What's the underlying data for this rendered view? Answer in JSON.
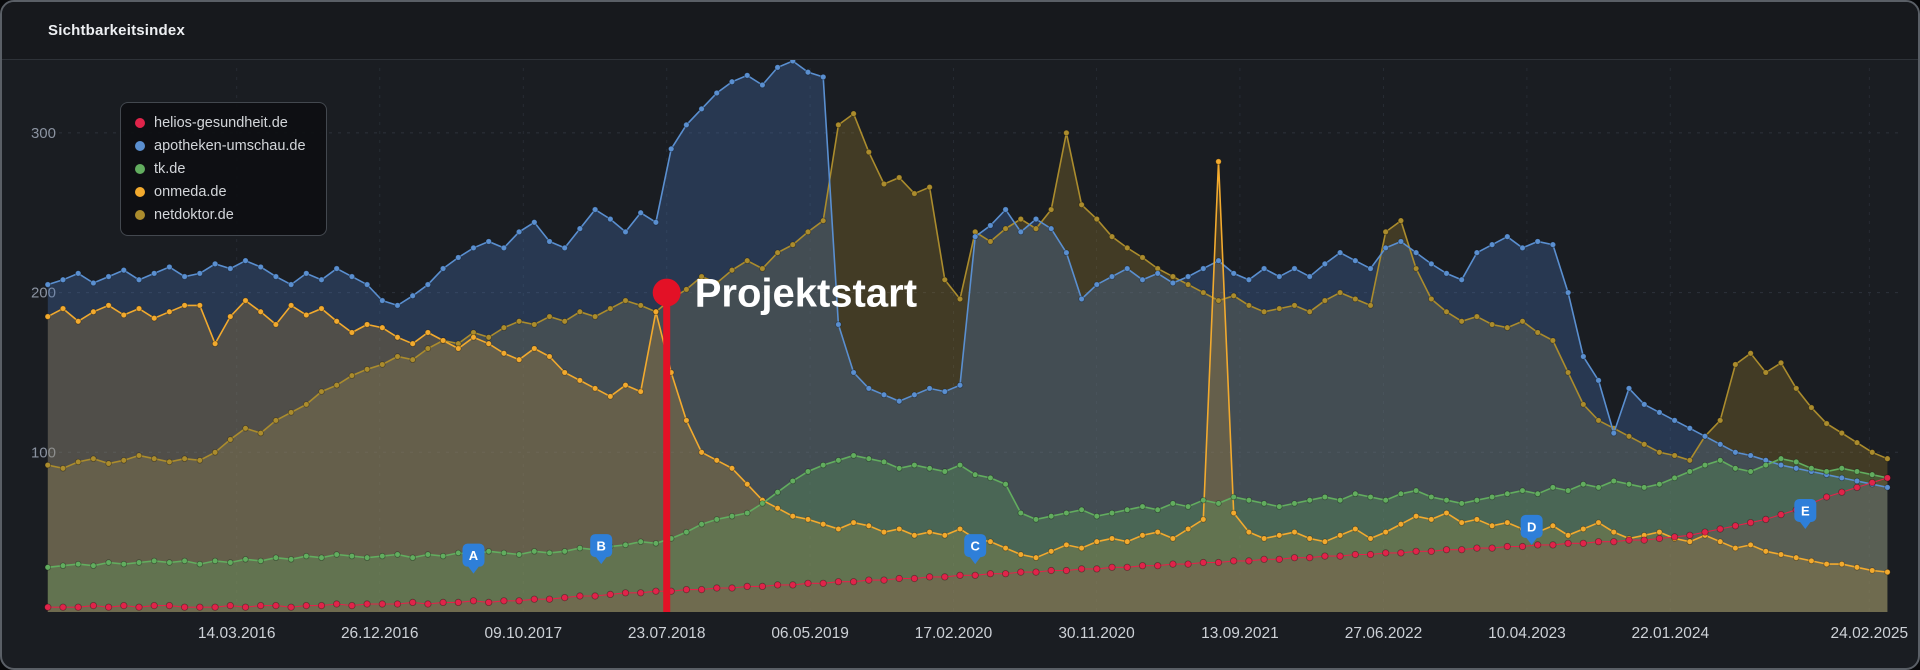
{
  "header": {
    "title": "Sichtbarkeitsindex"
  },
  "chart_data": {
    "type": "line",
    "title": "Sichtbarkeitsindex",
    "legend_position": "top-left",
    "grid": true,
    "x_axis": {
      "range": [
        2015.08,
        2025.33
      ],
      "tick_labels": [
        "14.03.2016",
        "26.12.2016",
        "09.10.2017",
        "23.07.2018",
        "06.05.2019",
        "17.02.2020",
        "30.11.2020",
        "13.09.2021",
        "27.06.2022",
        "10.04.2023",
        "22.01.2024",
        "24.02.2025"
      ],
      "tick_positions": [
        2016.202,
        2016.986,
        2017.773,
        2018.559,
        2019.345,
        2020.131,
        2020.915,
        2021.701,
        2022.488,
        2023.274,
        2024.06,
        2025.151
      ]
    },
    "y_axis": {
      "ticks": [
        "100",
        "200",
        "300"
      ],
      "tick_values": [
        100,
        200,
        300
      ],
      "min": 0,
      "max": 345
    },
    "x_start": 2015.1667,
    "x_step_years": 0.0833333,
    "series": [
      {
        "name": "helios-gesundheit.de",
        "color": "#e0244a",
        "fill": "rgba(224,36,74,0.10)",
        "marker_radius": 3.2,
        "line_width": 1.1,
        "values": [
          3,
          3,
          3,
          4,
          3,
          4,
          3,
          4,
          4,
          3,
          3,
          3,
          4,
          3,
          4,
          4,
          3,
          4,
          4,
          5,
          4,
          5,
          5,
          5,
          6,
          5,
          6,
          6,
          7,
          6,
          7,
          7,
          8,
          8,
          9,
          10,
          10,
          11,
          12,
          12,
          13,
          13,
          14,
          14,
          15,
          15,
          16,
          16,
          17,
          17,
          18,
          18,
          19,
          19,
          20,
          20,
          21,
          21,
          22,
          22,
          23,
          23,
          24,
          24,
          25,
          25,
          26,
          26,
          27,
          27,
          28,
          28,
          29,
          29,
          30,
          30,
          31,
          31,
          32,
          32,
          33,
          33,
          34,
          34,
          35,
          35,
          36,
          36,
          37,
          37,
          38,
          38,
          39,
          39,
          40,
          40,
          41,
          41,
          42,
          42,
          43,
          43,
          44,
          44,
          45,
          45,
          46,
          47,
          48,
          50,
          52,
          54,
          56,
          58,
          61,
          64,
          68,
          72,
          75,
          78,
          81,
          84
        ]
      },
      {
        "name": "apotheken-umschau.de",
        "color": "#5a8fd0",
        "fill": "rgba(70,115,180,0.32)",
        "marker_radius": 2.8,
        "line_width": 1.6,
        "values": [
          205,
          208,
          212,
          206,
          210,
          214,
          208,
          212,
          216,
          210,
          212,
          218,
          215,
          220,
          216,
          210,
          205,
          212,
          208,
          215,
          210,
          205,
          195,
          192,
          198,
          205,
          215,
          222,
          228,
          232,
          228,
          238,
          244,
          232,
          228,
          240,
          252,
          246,
          238,
          250,
          244,
          290,
          305,
          315,
          325,
          332,
          336,
          330,
          341,
          345,
          338,
          335,
          180,
          150,
          140,
          136,
          132,
          136,
          140,
          138,
          142,
          235,
          242,
          252,
          238,
          246,
          240,
          225,
          196,
          205,
          210,
          215,
          208,
          212,
          206,
          210,
          215,
          220,
          212,
          208,
          215,
          210,
          215,
          210,
          218,
          225,
          220,
          215,
          228,
          232,
          225,
          218,
          212,
          208,
          225,
          230,
          235,
          228,
          232,
          230,
          200,
          160,
          145,
          112,
          140,
          130,
          125,
          120,
          115,
          110,
          105,
          100,
          98,
          95,
          92,
          90,
          88,
          86,
          84,
          82,
          80,
          78
        ]
      },
      {
        "name": "tk.de",
        "color": "#62ad5f",
        "fill": "rgba(95,170,95,0.28)",
        "marker_radius": 2.8,
        "line_width": 1.6,
        "values": [
          28,
          29,
          30,
          29,
          31,
          30,
          31,
          32,
          31,
          32,
          30,
          32,
          31,
          33,
          32,
          34,
          33,
          35,
          34,
          36,
          35,
          34,
          35,
          36,
          34,
          36,
          35,
          37,
          36,
          38,
          37,
          36,
          38,
          37,
          38,
          40,
          39,
          41,
          42,
          44,
          43,
          46,
          50,
          55,
          58,
          60,
          62,
          68,
          75,
          82,
          88,
          92,
          95,
          98,
          96,
          94,
          90,
          92,
          90,
          88,
          92,
          86,
          84,
          80,
          62,
          58,
          60,
          62,
          64,
          60,
          62,
          64,
          66,
          64,
          68,
          66,
          70,
          68,
          72,
          70,
          68,
          66,
          68,
          70,
          72,
          70,
          74,
          72,
          70,
          74,
          76,
          72,
          70,
          68,
          70,
          72,
          74,
          76,
          74,
          78,
          76,
          80,
          78,
          82,
          80,
          78,
          80,
          84,
          88,
          92,
          95,
          90,
          88,
          92,
          96,
          94,
          90,
          88,
          90,
          88,
          86,
          84
        ]
      },
      {
        "name": "onmeda.de",
        "color": "#f2aa2e",
        "fill": "rgba(240,172,45,0.20)",
        "marker_radius": 2.8,
        "line_width": 1.6,
        "values": [
          185,
          190,
          182,
          188,
          192,
          186,
          190,
          184,
          188,
          192,
          192,
          168,
          185,
          195,
          188,
          180,
          192,
          186,
          190,
          182,
          175,
          180,
          178,
          172,
          168,
          175,
          170,
          165,
          172,
          168,
          162,
          158,
          165,
          160,
          150,
          145,
          140,
          135,
          142,
          138,
          188,
          150,
          120,
          100,
          95,
          90,
          80,
          70,
          65,
          60,
          58,
          55,
          52,
          56,
          54,
          50,
          52,
          48,
          50,
          48,
          52,
          46,
          44,
          40,
          36,
          34,
          38,
          42,
          40,
          44,
          46,
          44,
          48,
          50,
          46,
          52,
          58,
          282,
          62,
          50,
          46,
          48,
          50,
          46,
          44,
          48,
          52,
          46,
          50,
          55,
          60,
          58,
          62,
          56,
          58,
          54,
          56,
          52,
          50,
          54,
          48,
          52,
          56,
          50,
          46,
          48,
          50,
          46,
          44,
          48,
          44,
          40,
          42,
          38,
          36,
          34,
          32,
          30,
          30,
          28,
          26,
          25
        ]
      },
      {
        "name": "netdoktor.de",
        "color": "#ab8c2d",
        "fill": "rgba(160,130,45,0.30)",
        "marker_radius": 2.8,
        "line_width": 1.6,
        "values": [
          92,
          90,
          94,
          96,
          93,
          95,
          98,
          96,
          94,
          96,
          95,
          100,
          108,
          115,
          112,
          120,
          125,
          130,
          138,
          142,
          148,
          152,
          155,
          160,
          158,
          165,
          170,
          168,
          175,
          172,
          178,
          182,
          180,
          185,
          182,
          188,
          185,
          190,
          195,
          192,
          188,
          196,
          202,
          210,
          206,
          214,
          220,
          215,
          225,
          230,
          238,
          245,
          305,
          312,
          288,
          268,
          272,
          262,
          266,
          208,
          196,
          238,
          232,
          240,
          246,
          240,
          252,
          300,
          255,
          246,
          235,
          228,
          222,
          215,
          210,
          205,
          200,
          195,
          198,
          192,
          188,
          190,
          192,
          188,
          195,
          200,
          196,
          192,
          238,
          245,
          215,
          196,
          188,
          182,
          185,
          180,
          178,
          182,
          175,
          170,
          150,
          130,
          120,
          115,
          110,
          105,
          100,
          98,
          95,
          110,
          120,
          155,
          162,
          150,
          156,
          140,
          128,
          118,
          112,
          106,
          100,
          96
        ]
      }
    ],
    "draw_order": [
      "netdoktor.de",
      "apotheken-umschau.de",
      "onmeda.de",
      "tk.de",
      "helios-gesundheit.de"
    ],
    "annotation": {
      "label": "Projektstart",
      "x": 2018.559,
      "top_value": 200,
      "color": "#e31126",
      "text_color": "#ffffff"
    },
    "event_pins": {
      "color": "#2e7fd9",
      "items": [
        {
          "label": "A",
          "x": 2017.5,
          "y": 24
        },
        {
          "label": "B",
          "x": 2018.2,
          "y": 30
        },
        {
          "label": "C",
          "x": 2020.25,
          "y": 30
        },
        {
          "label": "D",
          "x": 2023.3,
          "y": 42
        },
        {
          "label": "E",
          "x": 2024.8,
          "y": 52
        }
      ]
    }
  }
}
